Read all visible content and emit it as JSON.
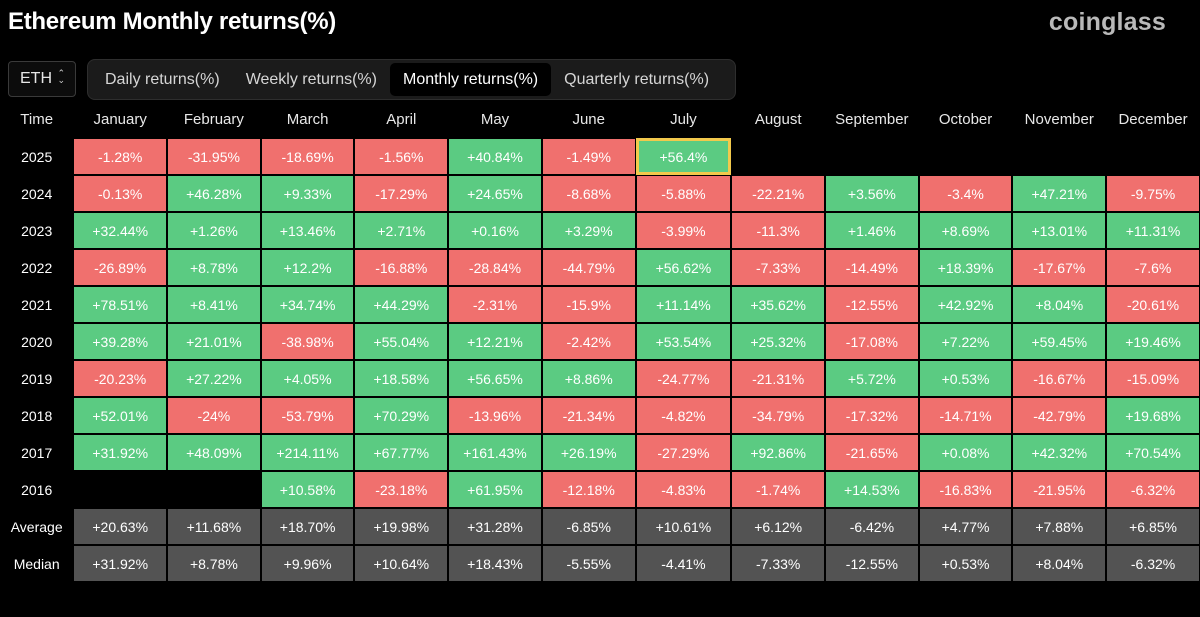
{
  "header": {
    "title": "Ethereum Monthly returns(%)",
    "brand": "coinglass"
  },
  "coin_select": {
    "value": "ETH",
    "icon": "chevron-up-down-icon"
  },
  "tabs": [
    {
      "label": "Daily returns(%)",
      "active": false
    },
    {
      "label": "Weekly returns(%)",
      "active": false
    },
    {
      "label": "Monthly returns(%)",
      "active": true
    },
    {
      "label": "Quarterly returns(%)",
      "active": false
    }
  ],
  "colors": {
    "positive": "#5bcb82",
    "negative": "#f0706e",
    "summary": "#535353",
    "highlight": "#f2c94c"
  },
  "table": {
    "time_header": "Time",
    "months": [
      "January",
      "February",
      "March",
      "April",
      "May",
      "June",
      "July",
      "August",
      "September",
      "October",
      "November",
      "December"
    ],
    "rows": [
      {
        "year": "2025",
        "values": [
          "-1.28%",
          "-31.95%",
          "-18.69%",
          "-1.56%",
          "+40.84%",
          "-1.49%",
          "+56.4%",
          "",
          "",
          "",
          "",
          ""
        ]
      },
      {
        "year": "2024",
        "values": [
          "-0.13%",
          "+46.28%",
          "+9.33%",
          "-17.29%",
          "+24.65%",
          "-8.68%",
          "-5.88%",
          "-22.21%",
          "+3.56%",
          "-3.4%",
          "+47.21%",
          "-9.75%"
        ]
      },
      {
        "year": "2023",
        "values": [
          "+32.44%",
          "+1.26%",
          "+13.46%",
          "+2.71%",
          "+0.16%",
          "+3.29%",
          "-3.99%",
          "-11.3%",
          "+1.46%",
          "+8.69%",
          "+13.01%",
          "+11.31%"
        ]
      },
      {
        "year": "2022",
        "values": [
          "-26.89%",
          "+8.78%",
          "+12.2%",
          "-16.88%",
          "-28.84%",
          "-44.79%",
          "+56.62%",
          "-7.33%",
          "-14.49%",
          "+18.39%",
          "-17.67%",
          "-7.6%"
        ]
      },
      {
        "year": "2021",
        "values": [
          "+78.51%",
          "+8.41%",
          "+34.74%",
          "+44.29%",
          "-2.31%",
          "-15.9%",
          "+11.14%",
          "+35.62%",
          "-12.55%",
          "+42.92%",
          "+8.04%",
          "-20.61%"
        ]
      },
      {
        "year": "2020",
        "values": [
          "+39.28%",
          "+21.01%",
          "-38.98%",
          "+55.04%",
          "+12.21%",
          "-2.42%",
          "+53.54%",
          "+25.32%",
          "-17.08%",
          "+7.22%",
          "+59.45%",
          "+19.46%"
        ]
      },
      {
        "year": "2019",
        "values": [
          "-20.23%",
          "+27.22%",
          "+4.05%",
          "+18.58%",
          "+56.65%",
          "+8.86%",
          "-24.77%",
          "-21.31%",
          "+5.72%",
          "+0.53%",
          "-16.67%",
          "-15.09%"
        ]
      },
      {
        "year": "2018",
        "values": [
          "+52.01%",
          "-24%",
          "-53.79%",
          "+70.29%",
          "-13.96%",
          "-21.34%",
          "-4.82%",
          "-34.79%",
          "-17.32%",
          "-14.71%",
          "-42.79%",
          "+19.68%"
        ]
      },
      {
        "year": "2017",
        "values": [
          "+31.92%",
          "+48.09%",
          "+214.11%",
          "+67.77%",
          "+161.43%",
          "+26.19%",
          "-27.29%",
          "+92.86%",
          "-21.65%",
          "+0.08%",
          "+42.32%",
          "+70.54%"
        ]
      },
      {
        "year": "2016",
        "values": [
          "",
          "",
          "+10.58%",
          "-23.18%",
          "+61.95%",
          "-12.18%",
          "-4.83%",
          "-1.74%",
          "+14.53%",
          "-16.83%",
          "-21.95%",
          "-6.32%"
        ]
      }
    ],
    "current_cell": {
      "year": "2025",
      "month": "July"
    },
    "summary_rows": [
      {
        "label": "Average",
        "values": [
          "+20.63%",
          "+11.68%",
          "+18.70%",
          "+19.98%",
          "+31.28%",
          "-6.85%",
          "+10.61%",
          "+6.12%",
          "-6.42%",
          "+4.77%",
          "+7.88%",
          "+6.85%"
        ]
      },
      {
        "label": "Median",
        "values": [
          "+31.92%",
          "+8.78%",
          "+9.96%",
          "+10.64%",
          "+18.43%",
          "-5.55%",
          "-4.41%",
          "-7.33%",
          "-12.55%",
          "+0.53%",
          "+8.04%",
          "-6.32%"
        ]
      }
    ]
  }
}
